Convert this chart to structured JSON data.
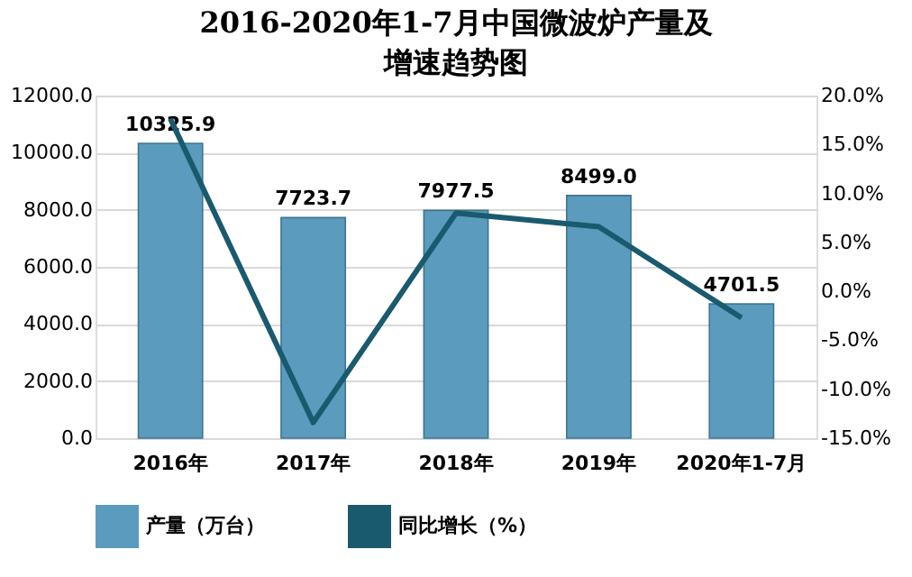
{
  "chart_data": {
    "type": "bar",
    "title": "2016-2020年1-7月中国微波炉产量及增速趋势图",
    "categories": [
      "2016年",
      "2017年",
      "2018年",
      "2019年",
      "2020年1-7月"
    ],
    "series": [
      {
        "name": "产量（万台）",
        "color": "#5b9bbd",
        "values": [
          10325.9,
          7723.7,
          7977.5,
          8499.0,
          4701.5
        ],
        "value_labels": [
          "10325.9",
          "7723.7",
          "7977.5",
          "8499.0",
          "4701.5"
        ]
      },
      {
        "name": "同比增长（%）",
        "type": "line",
        "axis": "y2",
        "color": "#1a5a6e",
        "values": [
          17.6,
          -13.4,
          8.0,
          6.6,
          -2.7
        ]
      }
    ],
    "ylim": [
      0,
      12000
    ],
    "yticks": [
      {
        "value": 0,
        "label": "0.0"
      },
      {
        "value": 2000,
        "label": "2000.0"
      },
      {
        "value": 4000,
        "label": "4000.0"
      },
      {
        "value": 6000,
        "label": "6000.0"
      },
      {
        "value": 8000,
        "label": "8000.0"
      },
      {
        "value": 10000,
        "label": "10000.0"
      },
      {
        "value": 12000,
        "label": "12000.0"
      }
    ],
    "y2lim": [
      -15,
      20
    ],
    "y2ticks": [
      {
        "value": -15,
        "label": "-15.0%"
      },
      {
        "value": -10,
        "label": "-10.0%"
      },
      {
        "value": -5,
        "label": "-5.0%"
      },
      {
        "value": 0,
        "label": "0.0%"
      },
      {
        "value": 5,
        "label": "5.0%"
      },
      {
        "value": 10,
        "label": "10.0%"
      },
      {
        "value": 15,
        "label": "15.0%"
      },
      {
        "value": 20,
        "label": "20.0%"
      }
    ],
    "grid": "y",
    "legend": "bottom",
    "marker": "none",
    "line_style": "solid"
  }
}
